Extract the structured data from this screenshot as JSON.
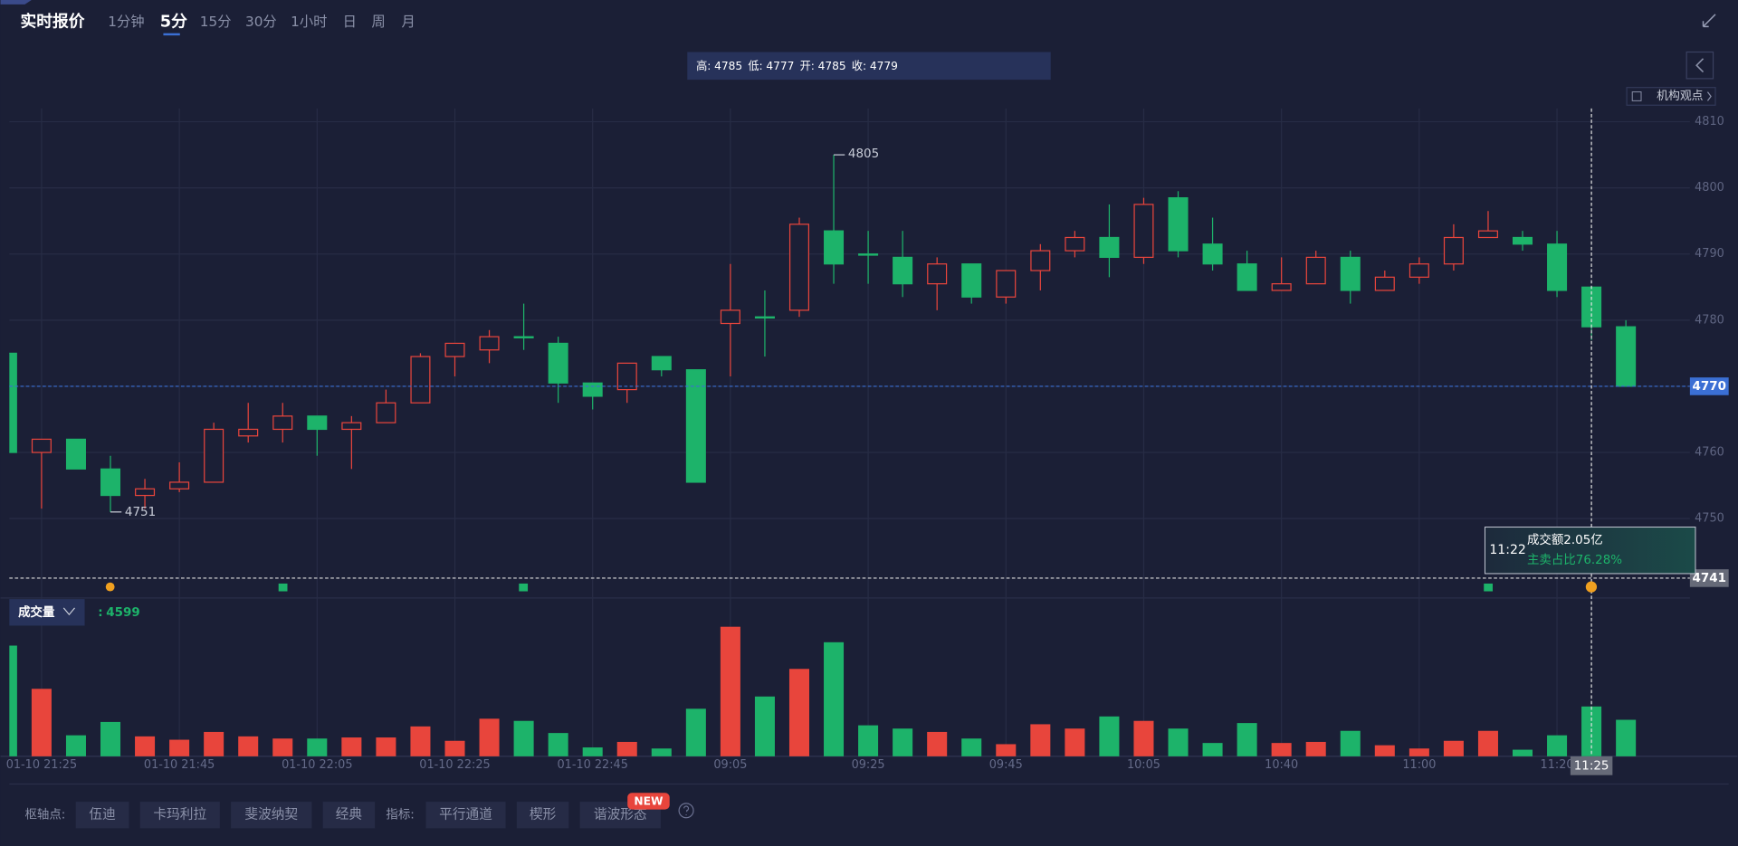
{
  "header": {
    "title": "实时报价",
    "tabs": [
      "1分钟",
      "5分",
      "15分",
      "30分",
      "1小时",
      "日",
      "周",
      "月"
    ],
    "active_tab": 1,
    "side_link": "机构观点"
  },
  "chart_data": {
    "type": "candlestick",
    "categories": [
      null,
      "01-10 21:25",
      null,
      null,
      null,
      "01-10 21:45",
      null,
      null,
      null,
      "01-10 22:05",
      null,
      null,
      null,
      "01-10 22:25",
      null,
      null,
      null,
      "01-10 22:45",
      null,
      null,
      null,
      "09:05",
      null,
      null,
      null,
      "09:25",
      null,
      null,
      null,
      "09:45",
      null,
      null,
      null,
      "10:05",
      null,
      null,
      null,
      "10:40",
      null,
      null,
      null,
      "11:00",
      null,
      null,
      null,
      "11:20",
      "11:25",
      null
    ],
    "open": [
      4775,
      4760,
      4762,
      4757.5,
      4753.5,
      4754.5,
      4755.5,
      4762.5,
      4763.5,
      4765.5,
      4763.5,
      4764.5,
      4767.5,
      4774.5,
      4775.5,
      4777.5,
      4776.5,
      4770.5,
      4769.5,
      4774.5,
      4772.5,
      4779.5,
      4780.5,
      4781.5,
      4793.5,
      4790,
      4789.5,
      4785.5,
      4788.5,
      4783.5,
      4787.5,
      4790.5,
      4792.5,
      4789.5,
      4798.5,
      4791.5,
      4788.5,
      4784.5,
      4785.5,
      4789.5,
      4784.5,
      4786.5,
      4788.5,
      4792.5,
      4792.5,
      4791.5,
      4785,
      4779
    ],
    "high": [
      4776.5,
      4762,
      4762,
      4759.5,
      4756,
      4758.5,
      4764.5,
      4767.5,
      4767.5,
      4765.5,
      4765.5,
      4769.5,
      4775,
      4776.5,
      4778.5,
      4782.5,
      4777.5,
      4770.5,
      4773.5,
      4774.5,
      4772.5,
      4788.5,
      4784.5,
      4795.5,
      4805,
      4793.5,
      4793.5,
      4789.5,
      4788.5,
      4787.5,
      4791.5,
      4793.5,
      4797.5,
      4798.5,
      4799.5,
      4795.5,
      4790.5,
      4789.5,
      4790.5,
      4790.5,
      4787.5,
      4789.5,
      4794.5,
      4796.5,
      4793.5,
      4793.5,
      4785,
      4780
    ],
    "low": [
      4760,
      4751.5,
      4757.5,
      4751,
      4751.5,
      4754,
      4755.5,
      4761.5,
      4761.5,
      4759.5,
      4757.5,
      4764.5,
      4767.5,
      4771.5,
      4773.5,
      4775.5,
      4767.5,
      4766.5,
      4767.5,
      4771.5,
      4755.5,
      4771.5,
      4774.5,
      4780.5,
      4785.5,
      4785.5,
      4783.5,
      4781.5,
      4782.5,
      4782.5,
      4784.5,
      4789.5,
      4786.5,
      4788.5,
      4789.5,
      4787.5,
      4784.5,
      4784.5,
      4785.5,
      4782.5,
      4784.5,
      4785.5,
      4787.5,
      4792.5,
      4790.5,
      4783.5,
      4777,
      4770
    ],
    "close": [
      4760,
      4762,
      4757.5,
      4753.5,
      4754.5,
      4755.5,
      4763.5,
      4763.5,
      4765.5,
      4763.5,
      4764.5,
      4767.5,
      4774.5,
      4776.5,
      4777.5,
      4777.5,
      4770.5,
      4768.5,
      4773.5,
      4772.5,
      4755.5,
      4781.5,
      4780.5,
      4794.5,
      4788.5,
      4790,
      4785.5,
      4788.5,
      4783.5,
      4787.5,
      4790.5,
      4792.5,
      4789.5,
      4797.5,
      4790.5,
      4788.5,
      4784.5,
      4785.5,
      4789.5,
      4784.5,
      4786.5,
      4788.5,
      4792.5,
      4793.5,
      4791.5,
      4784.5,
      4779,
      4770
    ],
    "volume": [
      10220,
      6230,
      1940,
      3170,
      1840,
      1530,
      2250,
      1840,
      1640,
      1640,
      1740,
      1740,
      2760,
      1430,
      3470,
      3270,
      2150,
      820,
      1330,
      720,
      4390,
      11960,
      5520,
      8070,
      10530,
      2860,
      2560,
      2250,
      1640,
      1120,
      2960,
      2560,
      3680,
      3270,
      2560,
      1230,
      3070,
      1230,
      1330,
      2350,
      1020,
      720,
      1430,
      2350,
      610,
      1940,
      4599,
      3370
    ],
    "up_color": "#e8453c",
    "down_color": "#1db36a",
    "ylim": [
      4738,
      4812
    ],
    "yticks": [
      4750,
      4760,
      4770,
      4780,
      4790,
      4800,
      4810
    ],
    "grid": true,
    "crosshair": {
      "index": 46,
      "price": 4741
    },
    "ohlc_labels": [
      "高:",
      "低:",
      "开:",
      "收:"
    ],
    "volume_label": "成交量",
    "volume_separator": ":",
    "tooltip": {
      "time": "11:22",
      "amount": "成交额2.05亿",
      "sell_ratio": "主卖占比76.28%"
    }
  },
  "toolbar": {
    "pivot_label": "枢轴点:",
    "pivot_options": [
      "伍迪",
      "卡玛利拉",
      "斐波纳契",
      "经典"
    ],
    "indicator_label": "指标:",
    "indicator_options": [
      "平行通道",
      "楔形",
      "谐波形态"
    ],
    "badge": "NEW"
  }
}
